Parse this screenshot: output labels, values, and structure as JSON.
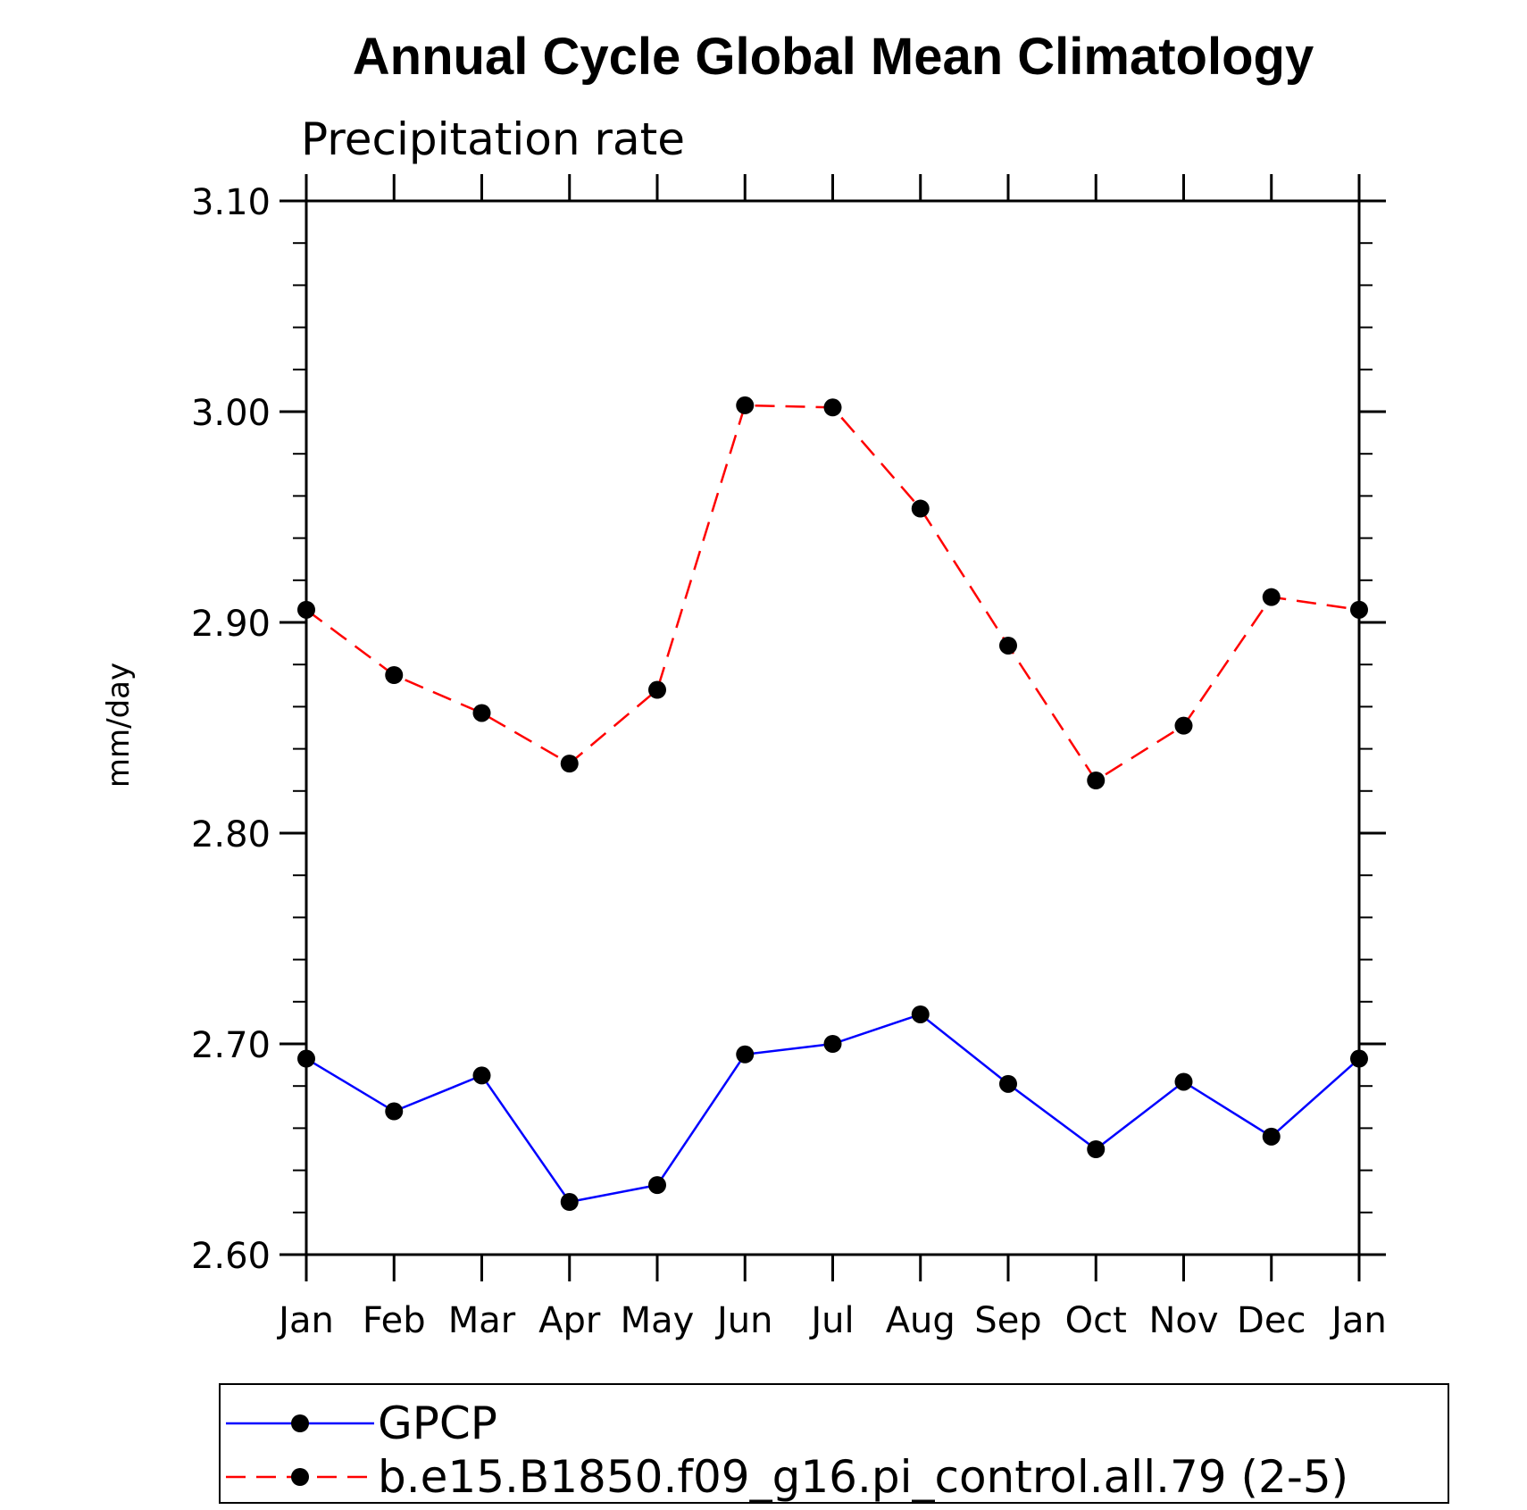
{
  "chart_data": {
    "type": "line",
    "title": "Annual Cycle Global Mean Climatology",
    "subtitle": "Precipitation rate",
    "xlabel": "",
    "ylabel": "mm/day",
    "categories": [
      "Jan",
      "Feb",
      "Mar",
      "Apr",
      "May",
      "Jun",
      "Jul",
      "Aug",
      "Sep",
      "Oct",
      "Nov",
      "Dec",
      "Jan"
    ],
    "ylim": [
      2.6,
      3.1
    ],
    "yticks": [
      "2.60",
      "2.70",
      "2.80",
      "2.90",
      "3.00",
      "3.10"
    ],
    "grid": false,
    "legend_position": "bottom",
    "series": [
      {
        "name": "GPCP",
        "color": "#0000ff",
        "dash": "solid",
        "marker": "circle",
        "values": [
          2.693,
          2.668,
          2.685,
          2.625,
          2.633,
          2.695,
          2.7,
          2.714,
          2.681,
          2.65,
          2.682,
          2.656,
          2.693
        ]
      },
      {
        "name": "b.e15.B1850.f09_g16.pi_control.all.79 (2-5)",
        "color": "#ff0000",
        "dash": "dashed",
        "marker": "circle",
        "values": [
          2.906,
          2.875,
          2.857,
          2.833,
          2.868,
          3.003,
          3.002,
          2.954,
          2.889,
          2.825,
          2.851,
          2.912,
          2.906
        ]
      }
    ]
  }
}
